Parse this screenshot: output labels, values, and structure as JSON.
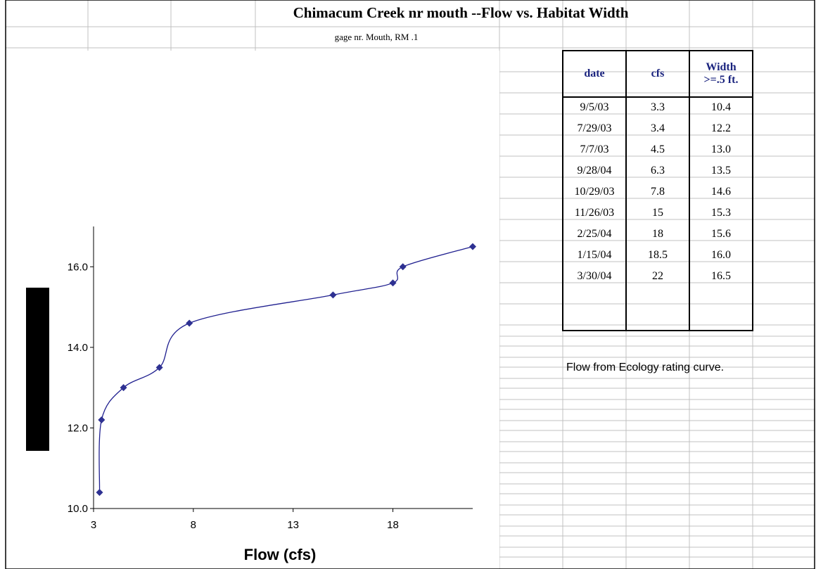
{
  "header": {
    "title": "Chimacum Creek nr mouth --Flow vs. Habitat Width",
    "subtitle": "gage nr. Mouth, RM .1"
  },
  "chart_data": {
    "type": "scatter",
    "x_label": "Flow (cfs)",
    "x": [
      3.3,
      3.4,
      4.5,
      6.3,
      7.8,
      15,
      18,
      18.5,
      22
    ],
    "series": [
      {
        "color": "#1f1f8f",
        "values": [
          10.4,
          12.2,
          13.0,
          13.5,
          14.6,
          15.3,
          15.6,
          16.0,
          16.5
        ]
      }
    ],
    "xlim": [
      3,
      22
    ],
    "xticks": [
      3,
      8,
      13,
      18
    ],
    "ylim": [
      10,
      17
    ],
    "yticks": [
      {
        "value": 10,
        "label": "10.0"
      },
      {
        "value": 12,
        "label": "12.0"
      },
      {
        "value": 14,
        "label": "14.0"
      },
      {
        "value": 16,
        "label": "16.0"
      }
    ]
  },
  "table": {
    "header": [
      "date",
      "cfs",
      "Width >=.5 ft."
    ],
    "rows": [
      [
        "9/5/03",
        "3.3",
        "10.4"
      ],
      [
        "7/29/03",
        "3.4",
        "12.2"
      ],
      [
        "7/7/03",
        "4.5",
        "13.0"
      ],
      [
        "9/28/04",
        "6.3",
        "13.5"
      ],
      [
        "10/29/03",
        "7.8",
        "14.6"
      ],
      [
        "11/26/03",
        "15",
        "15.3"
      ],
      [
        "2/25/04",
        "18",
        "15.6"
      ],
      [
        "1/15/04",
        "18.5",
        "16.0"
      ],
      [
        "3/30/04",
        "22",
        "16.5"
      ]
    ]
  },
  "note": "Flow from Ecology rating curve."
}
